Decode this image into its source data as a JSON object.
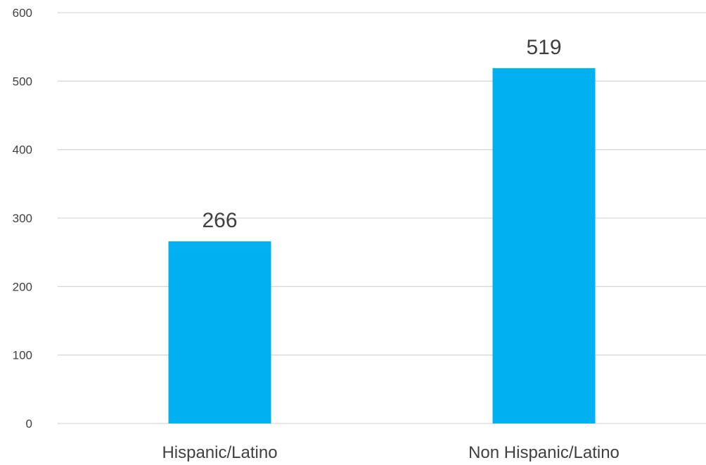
{
  "chart_data": {
    "type": "bar",
    "title": "",
    "xlabel": "",
    "ylabel": "",
    "categories": [
      "Hispanic/Latino",
      "Non Hispanic/Latino"
    ],
    "values": [
      266,
      519
    ],
    "data_labels": [
      "266",
      "519"
    ],
    "ylim": [
      0,
      600
    ],
    "yticks": [
      0,
      100,
      200,
      300,
      400,
      500,
      600
    ],
    "ytick_labels": [
      "0",
      "100",
      "200",
      "300",
      "400",
      "500",
      "600"
    ],
    "grid": true,
    "legend": "none",
    "colors": {
      "bar": "#00b0f0",
      "grid": "#d9d9d9",
      "text": "#404040"
    }
  }
}
